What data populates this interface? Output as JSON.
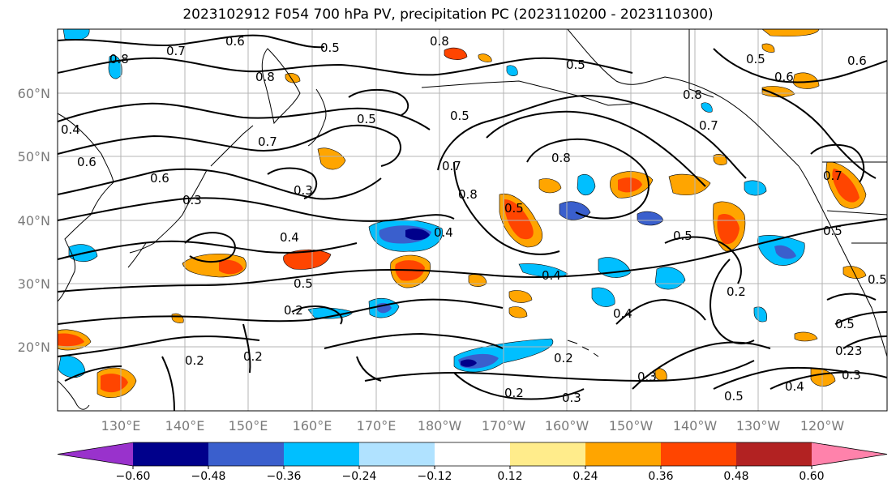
{
  "title": "2023102912 F054 700 hPa PV, precipitation PC (2023110200 - 2023110300)",
  "lat_labels": [
    "60°N",
    "50°N",
    "40°N",
    "30°N",
    "20°N"
  ],
  "lon_labels": [
    "130°E",
    "140°E",
    "150°E",
    "160°E",
    "170°E",
    "180°W",
    "170°W",
    "160°W",
    "150°W",
    "140°W",
    "130°W",
    "120°W"
  ],
  "colorbar": {
    "colors": [
      "#9932cc",
      "#00008b",
      "#3a5fcd",
      "#00bfff",
      "#b0e2ff",
      "#ffffff",
      "#ffec8b",
      "#ffa500",
      "#ff4500",
      "#b22222",
      "#ff82ab"
    ],
    "tick_labels": [
      "−0.60",
      "−0.48",
      "−0.36",
      "−0.24",
      "−0.12",
      "0.12",
      "0.24",
      "0.36",
      "0.48",
      "0.60"
    ]
  },
  "contour_labels": [
    {
      "id": "c1",
      "text": "0.7"
    },
    {
      "id": "c2",
      "text": "0.6"
    },
    {
      "id": "c3",
      "text": "0.5"
    },
    {
      "id": "c4",
      "text": "0.8"
    },
    {
      "id": "c5",
      "text": "0.8"
    },
    {
      "id": "c6",
      "text": "0.5"
    },
    {
      "id": "c7",
      "text": "0.5"
    },
    {
      "id": "c8",
      "text": "0.6"
    },
    {
      "id": "c9",
      "text": "0.8"
    },
    {
      "id": "c10",
      "text": "0.5"
    },
    {
      "id": "c11",
      "text": "0.5"
    },
    {
      "id": "c12",
      "text": "0.7"
    },
    {
      "id": "c13",
      "text": "0.6"
    },
    {
      "id": "c14",
      "text": "0.4"
    },
    {
      "id": "c15",
      "text": "0.6"
    },
    {
      "id": "c16",
      "text": "0.8"
    },
    {
      "id": "c17",
      "text": "0.7"
    },
    {
      "id": "c18",
      "text": "0.3"
    },
    {
      "id": "c19",
      "text": "0.3"
    },
    {
      "id": "c20",
      "text": "0.7"
    },
    {
      "id": "c21",
      "text": "0.8"
    },
    {
      "id": "c22",
      "text": "0.5"
    },
    {
      "id": "c23",
      "text": "0.8"
    },
    {
      "id": "c24",
      "text": "0.7"
    },
    {
      "id": "c25",
      "text": "0.6"
    },
    {
      "id": "c26",
      "text": "0.4"
    },
    {
      "id": "c27",
      "text": "0.4"
    },
    {
      "id": "c28",
      "text": "0.5"
    },
    {
      "id": "c29",
      "text": "0.4"
    },
    {
      "id": "c30",
      "text": "0.5"
    },
    {
      "id": "c31",
      "text": "0.2"
    },
    {
      "id": "c32",
      "text": "0.2"
    },
    {
      "id": "c33",
      "text": "0.4"
    },
    {
      "id": "c34",
      "text": "0.5"
    },
    {
      "id": "c35",
      "text": "0.2"
    },
    {
      "id": "c36",
      "text": "0.2"
    },
    {
      "id": "c37",
      "text": "0.2"
    },
    {
      "id": "c38",
      "text": "0.2"
    },
    {
      "id": "c39",
      "text": "0.3"
    },
    {
      "id": "c40",
      "text": "0.3"
    },
    {
      "id": "c41",
      "text": "0.5"
    },
    {
      "id": "c42",
      "text": "0.4"
    },
    {
      "id": "c43",
      "text": "0.23"
    },
    {
      "id": "c44",
      "text": "0.3"
    },
    {
      "id": "c45",
      "text": "0.5"
    },
    {
      "id": "c46",
      "text": "0.5"
    }
  ]
}
